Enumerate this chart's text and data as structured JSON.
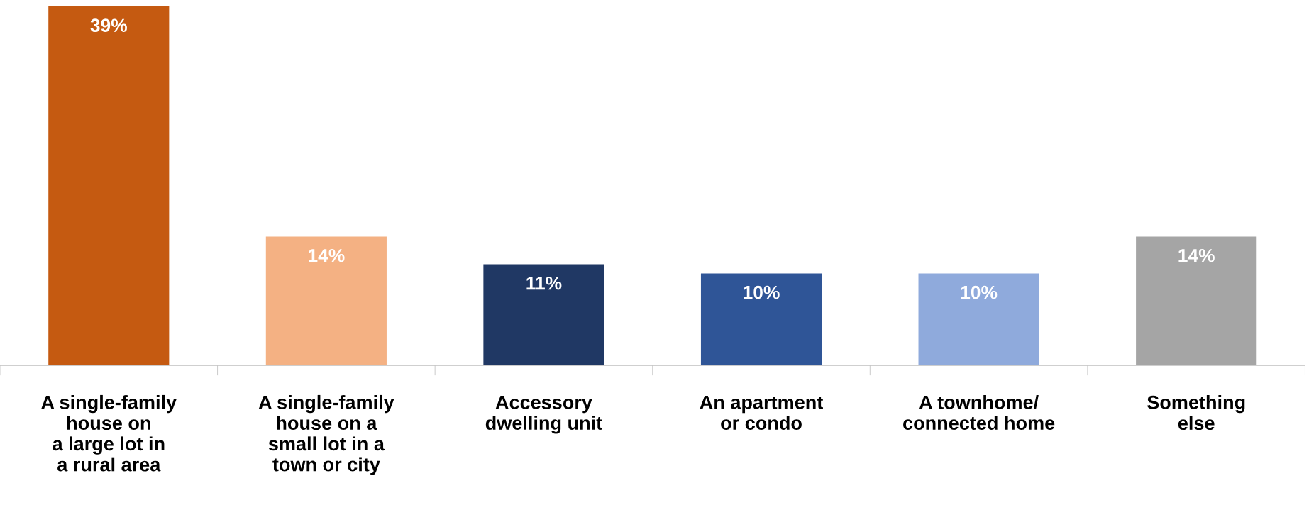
{
  "chart_data": {
    "type": "bar",
    "categories": [
      "A single-family\nhouse on\na large lot in\na rural area",
      "A single-family\nhouse on a\nsmall lot in a\ntown or city",
      "Accessory\ndwelling unit",
      "An apartment\nor condo",
      "A townhome/\nconnected home",
      "Something\nelse"
    ],
    "values": [
      39,
      14,
      11,
      10,
      10,
      14
    ],
    "value_labels": [
      "39%",
      "14%",
      "11%",
      "10%",
      "10%",
      "14%"
    ],
    "colors": [
      "#c55a11",
      "#f4b183",
      "#203864",
      "#2f5597",
      "#8faadc",
      "#a5a5a5"
    ],
    "grid": false,
    "legend": false
  }
}
